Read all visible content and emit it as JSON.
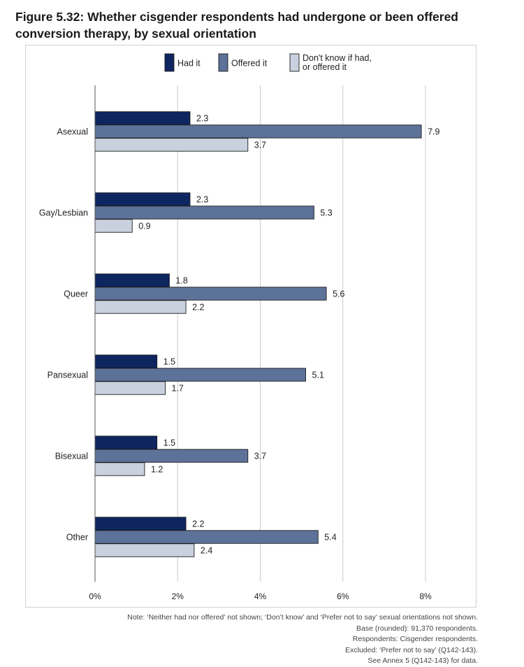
{
  "figure": {
    "title_line1": "Figure 5.32: Whether cisgender respondents had undergone or been offered",
    "title_line2": "conversion therapy, by sexual orientation"
  },
  "colors": {
    "had_it": "#0e2660",
    "offered_it": "#5d7299",
    "dont_know": "#c9d1df",
    "grid": "#cccccc",
    "bar_stroke": "#1c1c1c"
  },
  "chart_data": {
    "type": "bar",
    "orientation": "horizontal",
    "title": "Whether cisgender respondents had undergone or been offered conversion therapy, by sexual orientation",
    "categories": [
      "Asexual",
      "Gay/Lesbian",
      "Queer",
      "Pansexual",
      "Bisexual",
      "Other"
    ],
    "series": [
      {
        "name": "Had it",
        "legend_lines": [
          "Had it"
        ],
        "color_key": "had_it",
        "values": [
          2.3,
          2.3,
          1.8,
          1.5,
          1.5,
          2.2
        ]
      },
      {
        "name": "Offered it",
        "legend_lines": [
          "Offered it"
        ],
        "color_key": "offered_it",
        "values": [
          7.9,
          5.3,
          5.6,
          5.1,
          3.7,
          5.4
        ]
      },
      {
        "name": "Don't know if had, or offered it",
        "legend_lines": [
          "Don't know if had,",
          "or offered it"
        ],
        "color_key": "dont_know",
        "values": [
          3.7,
          0.9,
          2.2,
          1.7,
          1.2,
          2.4
        ]
      }
    ],
    "data_labels": [
      [
        "2.3",
        "7.9",
        "3.7"
      ],
      [
        "2.3",
        "5.3",
        "0.9"
      ],
      [
        "1.8",
        "5.6",
        "2.2"
      ],
      [
        "1.5",
        "5.1",
        "1.7"
      ],
      [
        "1.5",
        "3.7",
        "1.2"
      ],
      [
        "2.2",
        "5.4",
        "2.4"
      ]
    ],
    "xlim": [
      0,
      8
    ],
    "xticks": [
      0,
      2,
      4,
      6,
      8
    ],
    "xtick_labels": [
      "0%",
      "2%",
      "4%",
      "6%",
      "8%"
    ],
    "xlabel": "",
    "ylabel": "",
    "grid": true,
    "legend_position": "top-center"
  },
  "notes": [
    "Note: ‘Neither had nor offered’ not shown; ‘Don’t know’ and ‘Prefer not to say’ sexual orientations not shown.",
    "Base (rounded): 91,370 respondents.",
    "Respondents: Cisgender respondents.",
    "Excluded: ‘Prefer not to say’ (Q142-143).",
    "See Annex 5 (Q142-143) for data."
  ]
}
